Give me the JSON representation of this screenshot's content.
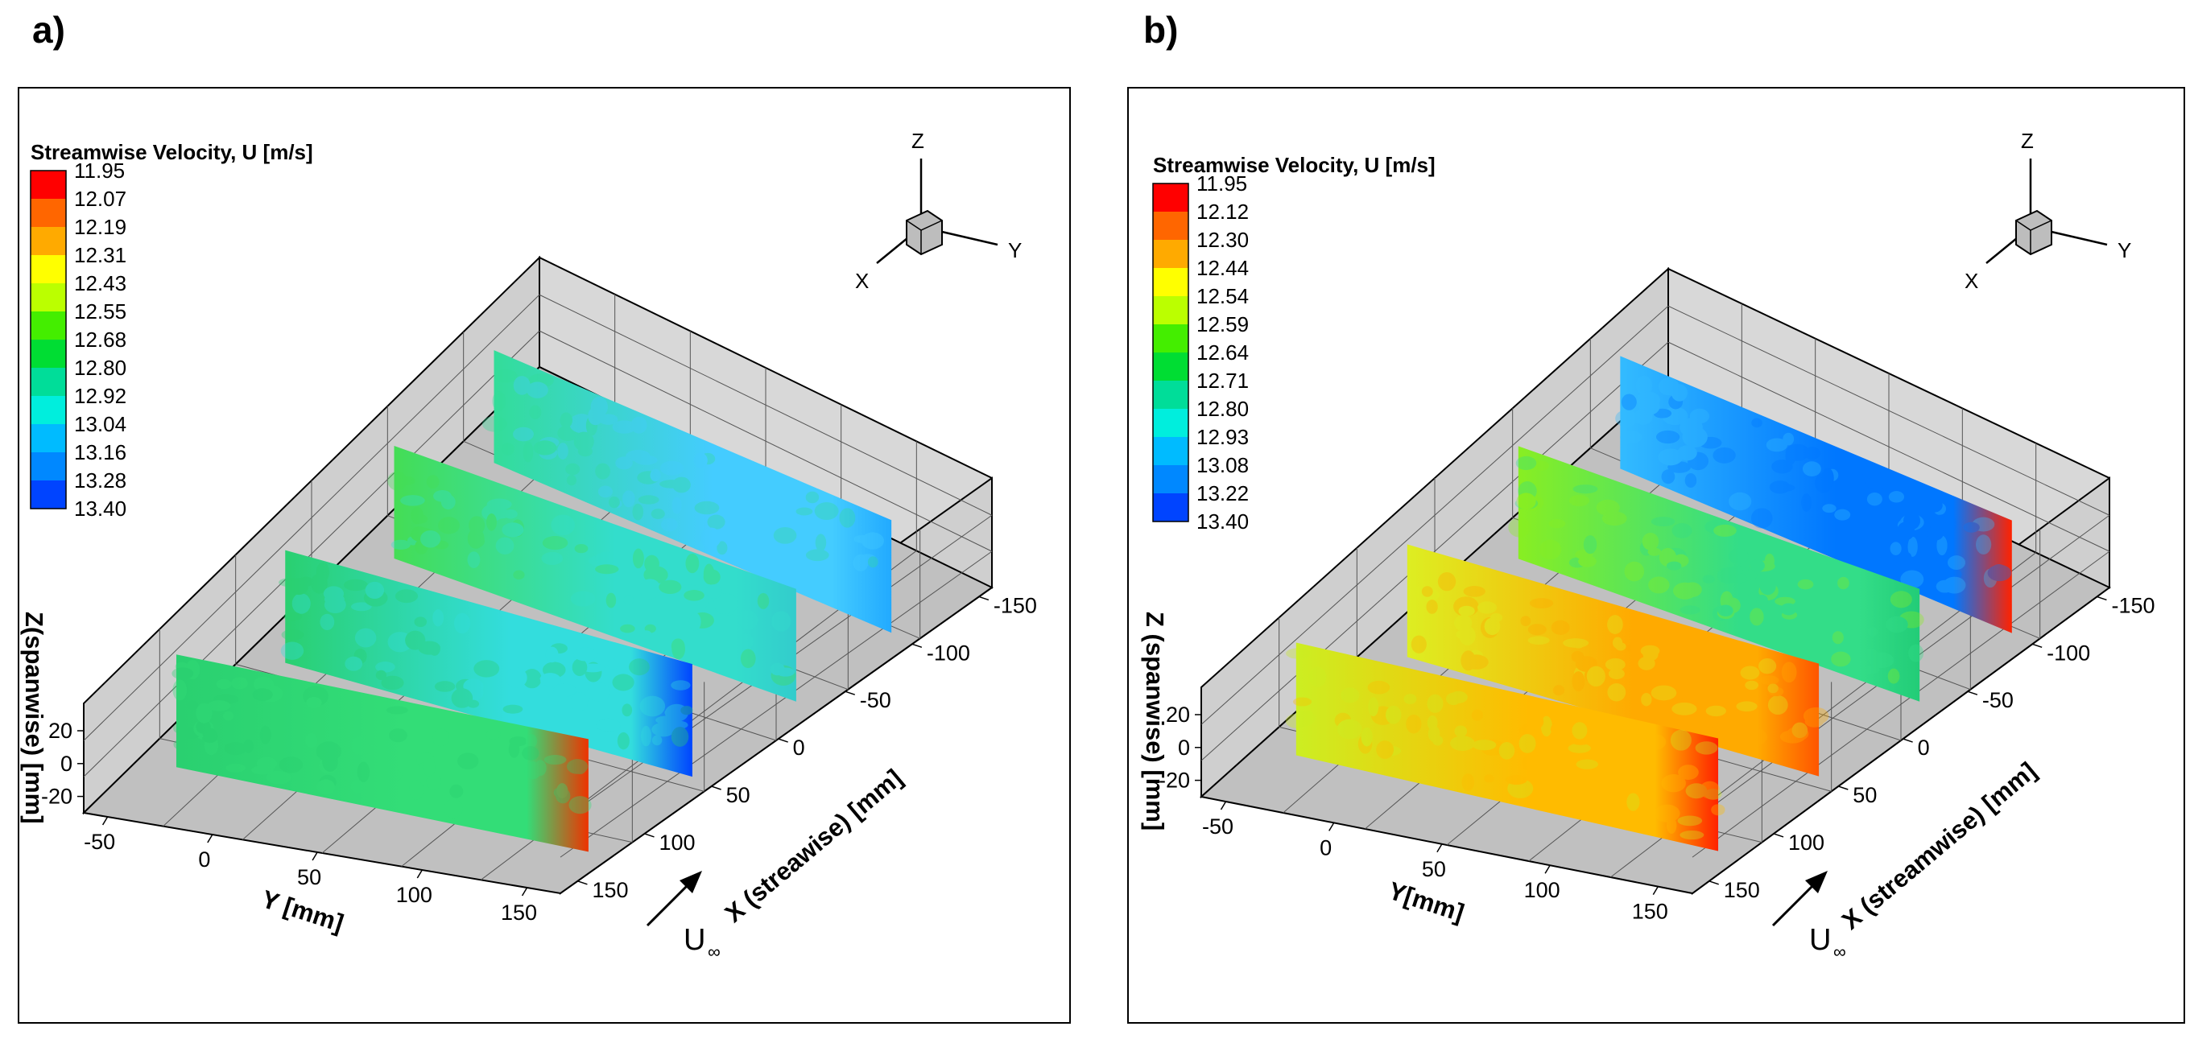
{
  "chart_data": [
    {
      "type": "heatmap",
      "panel_label": "a)",
      "legend": {
        "title": "Streamwise Velocity, U [m/s]",
        "levels": [
          "11.95",
          "12.07",
          "12.19",
          "12.31",
          "12.43",
          "12.55",
          "12.68",
          "12.80",
          "12.92",
          "13.04",
          "13.16",
          "13.28",
          "13.40"
        ],
        "colors": [
          "#ff0000",
          "#ff6600",
          "#ffaa00",
          "#ffff00",
          "#bbff00",
          "#44ee00",
          "#00dd33",
          "#00dd99",
          "#00eedd",
          "#00bbff",
          "#0088ff",
          "#0044ff",
          "#0000ee"
        ]
      },
      "axes": {
        "x_label": "X (streawise) [mm]",
        "y_label": "Y [mm]",
        "z_label": "Z(spanwise) [mm]",
        "x_ticks": [
          "-150",
          "-100",
          "-50",
          "0",
          "50",
          "100",
          "150"
        ],
        "y_ticks": [
          "-50",
          "0",
          "50",
          "100",
          "150"
        ],
        "z_ticks": [
          "20",
          "0",
          "-20"
        ]
      },
      "triad": {
        "z": "Z",
        "y": "Y",
        "x": "X"
      },
      "freestream_label": "U",
      "freestream_sub": "∞",
      "planes": [
        {
          "base": "#2ad070",
          "accent": "#33dd77",
          "end": "#ee3300"
        },
        {
          "base": "#2ad070",
          "accent": "#33dddd",
          "end": "#0044ff"
        },
        {
          "base": "#44dd55",
          "accent": "#33ddcc",
          "end": "#33cccc"
        },
        {
          "base": "#33dd99",
          "accent": "#44ccff",
          "end": "#22aaff"
        }
      ]
    },
    {
      "type": "heatmap",
      "panel_label": "b)",
      "legend": {
        "title": "Streamwise Velocity, U [m/s]",
        "levels": [
          "11.95",
          "12.12",
          "12.30",
          "12.44",
          "12.54",
          "12.59",
          "12.64",
          "12.71",
          "12.80",
          "12.93",
          "13.08",
          "13.22",
          "13.40"
        ],
        "colors": [
          "#ff0000",
          "#ff6600",
          "#ffaa00",
          "#ffff00",
          "#bbff00",
          "#44ee00",
          "#00dd33",
          "#00dd99",
          "#00eedd",
          "#00bbff",
          "#0088ff",
          "#0044ff",
          "#0000ee"
        ]
      },
      "axes": {
        "x_label": "X (streamwise) [mm]",
        "y_label": "Y[mm]",
        "z_label": "Z (spanwise) [mm]",
        "x_ticks": [
          "-150",
          "-100",
          "-50",
          "0",
          "50",
          "100",
          "150"
        ],
        "y_ticks": [
          "-50",
          "0",
          "50",
          "100",
          "150"
        ],
        "z_ticks": [
          "20",
          "0",
          "-20"
        ]
      },
      "triad": {
        "z": "Z",
        "y": "Y",
        "x": "X"
      },
      "freestream_label": "U",
      "freestream_sub": "∞",
      "planes": [
        {
          "base": "#ccee22",
          "accent": "#ffbb00",
          "end": "#ff2200"
        },
        {
          "base": "#ddee22",
          "accent": "#ffaa00",
          "end": "#ff5500"
        },
        {
          "base": "#88ee22",
          "accent": "#33dd88",
          "end": "#22cc77"
        },
        {
          "base": "#33bbff",
          "accent": "#0077ff",
          "end": "#ff2200"
        }
      ]
    }
  ]
}
